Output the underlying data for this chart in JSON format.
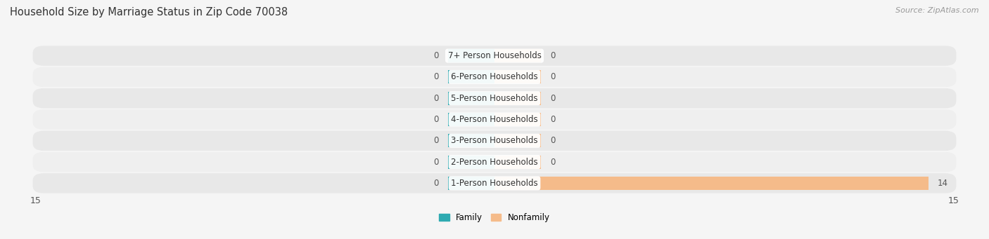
{
  "title": "Household Size by Marriage Status in Zip Code 70038",
  "source": "Source: ZipAtlas.com",
  "categories": [
    "7+ Person Households",
    "6-Person Households",
    "5-Person Households",
    "4-Person Households",
    "3-Person Households",
    "2-Person Households",
    "1-Person Households"
  ],
  "family_values": [
    0,
    0,
    0,
    0,
    0,
    0,
    0
  ],
  "nonfamily_values": [
    0,
    0,
    0,
    0,
    0,
    0,
    14
  ],
  "family_color": "#2EAAB1",
  "nonfamily_color": "#F5BB8A",
  "xlim_left": -15,
  "xlim_right": 15,
  "bar_height": 0.62,
  "stub_size": 1.5,
  "background_color": "#f5f5f5",
  "row_even_color": "#e8e8e8",
  "row_odd_color": "#efefef",
  "title_fontsize": 10.5,
  "label_fontsize": 8.5,
  "value_fontsize": 8.5,
  "tick_fontsize": 9,
  "source_fontsize": 8
}
